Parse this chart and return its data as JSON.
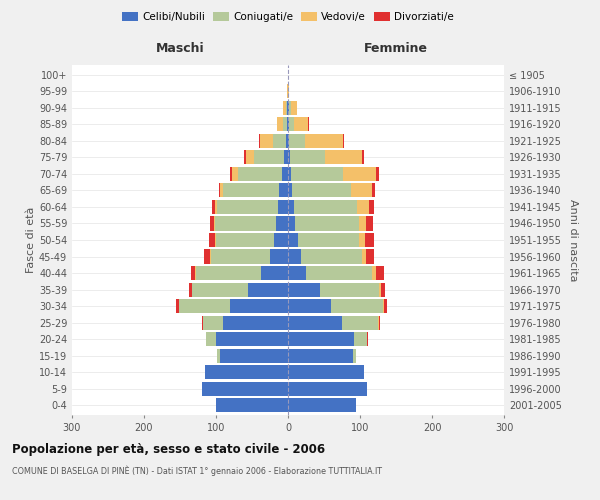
{
  "age_groups": [
    "0-4",
    "5-9",
    "10-14",
    "15-19",
    "20-24",
    "25-29",
    "30-34",
    "35-39",
    "40-44",
    "45-49",
    "50-54",
    "55-59",
    "60-64",
    "65-69",
    "70-74",
    "75-79",
    "80-84",
    "85-89",
    "90-94",
    "95-99",
    "100+"
  ],
  "birth_years": [
    "2001-2005",
    "1996-2000",
    "1991-1995",
    "1986-1990",
    "1981-1985",
    "1976-1980",
    "1971-1975",
    "1966-1970",
    "1961-1965",
    "1956-1960",
    "1951-1955",
    "1946-1950",
    "1941-1945",
    "1936-1940",
    "1931-1935",
    "1926-1930",
    "1921-1925",
    "1916-1920",
    "1911-1915",
    "1906-1910",
    "≤ 1905"
  ],
  "males": {
    "celibi": [
      100,
      120,
      115,
      95,
      100,
      90,
      80,
      55,
      38,
      25,
      20,
      16,
      14,
      12,
      8,
      5,
      3,
      2,
      1,
      0,
      0
    ],
    "coniugati": [
      0,
      0,
      0,
      4,
      14,
      28,
      72,
      78,
      90,
      82,
      80,
      85,
      85,
      78,
      62,
      42,
      18,
      5,
      2,
      0,
      0
    ],
    "vedovi": [
      0,
      0,
      0,
      0,
      0,
      0,
      0,
      0,
      1,
      1,
      2,
      2,
      3,
      4,
      8,
      12,
      18,
      8,
      4,
      1,
      0
    ],
    "divorziati": [
      0,
      0,
      0,
      0,
      0,
      1,
      4,
      4,
      6,
      8,
      8,
      5,
      4,
      2,
      2,
      2,
      1,
      0,
      0,
      0,
      0
    ]
  },
  "females": {
    "nubili": [
      95,
      110,
      105,
      90,
      92,
      75,
      60,
      45,
      25,
      18,
      14,
      10,
      8,
      6,
      4,
      3,
      2,
      1,
      1,
      0,
      0
    ],
    "coniugate": [
      0,
      0,
      0,
      4,
      18,
      50,
      72,
      82,
      92,
      85,
      85,
      88,
      88,
      82,
      72,
      48,
      22,
      7,
      3,
      0,
      0
    ],
    "vedove": [
      0,
      0,
      0,
      0,
      0,
      1,
      2,
      2,
      5,
      5,
      8,
      10,
      16,
      28,
      46,
      52,
      52,
      20,
      8,
      2,
      0
    ],
    "divorziate": [
      0,
      0,
      0,
      0,
      1,
      2,
      4,
      6,
      12,
      12,
      12,
      10,
      8,
      5,
      5,
      3,
      2,
      1,
      0,
      0,
      0
    ]
  },
  "color_celibi": "#4472c4",
  "color_coniugati": "#b5c99a",
  "color_vedovi": "#f4c069",
  "color_divorziati": "#e03030",
  "xlim": 300,
  "title": "Popolazione per età, sesso e stato civile - 2006",
  "subtitle": "COMUNE DI BASELGA DI PINÈ (TN) - Dati ISTAT 1° gennaio 2006 - Elaborazione TUTTITALIA.IT",
  "ylabel_left": "Fasce di età",
  "ylabel_right": "Anni di nascita",
  "xlabel_maschi": "Maschi",
  "xlabel_femmine": "Femmine",
  "legend_labels": [
    "Celibi/Nubili",
    "Coniugati/e",
    "Vedovi/e",
    "Divorziati/e"
  ],
  "bg_color": "#f0f0f0",
  "plot_bg_color": "#ffffff"
}
